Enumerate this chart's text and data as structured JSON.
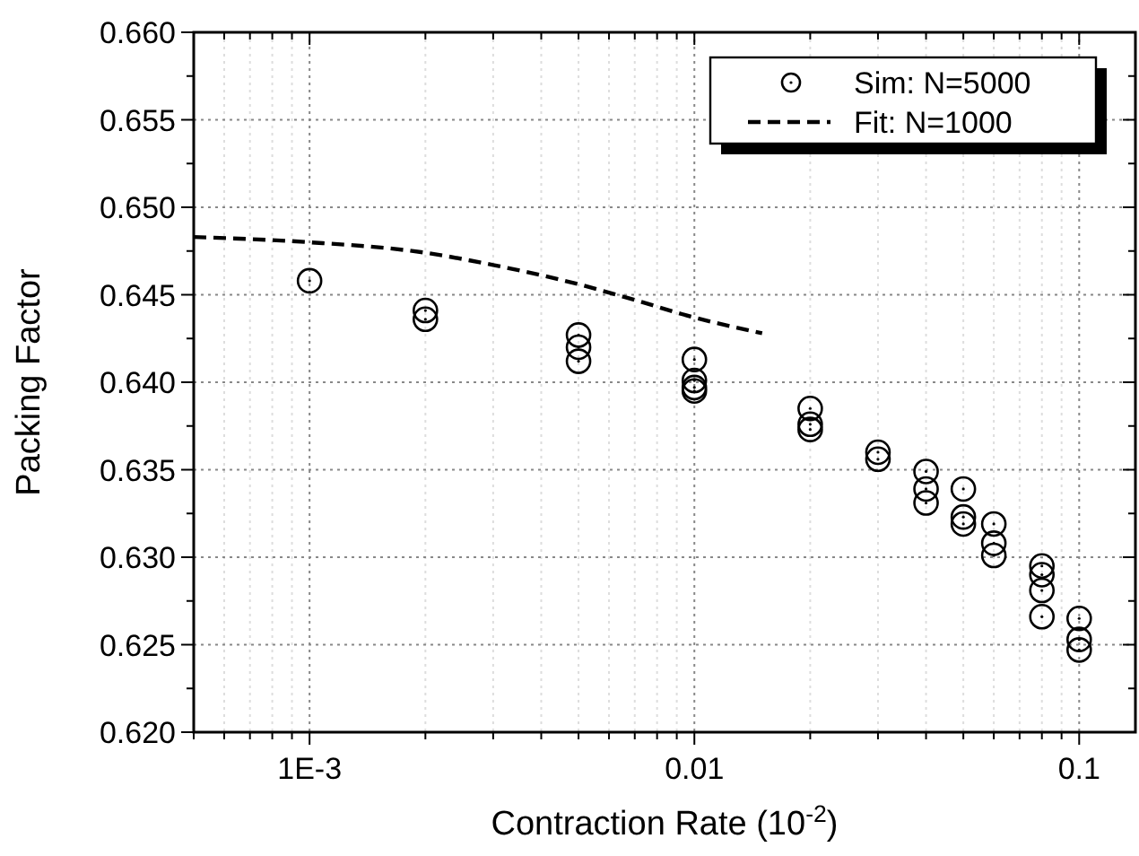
{
  "chart_data": {
    "type": "scatter",
    "xlabel": "Contraction Rate (10$^{-2}$)",
    "ylabel": "Packing Factor",
    "log": "x",
    "grid": true,
    "legend": "top right",
    "xlim": [
      0.0005,
      0.14
    ],
    "ylim": [
      0.62,
      0.66
    ],
    "xticks": [
      {
        "value": 0.0005,
        "label": null
      },
      {
        "value": 0.0006,
        "label": null
      },
      {
        "value": 0.0007,
        "label": null
      },
      {
        "value": 0.0008,
        "label": null
      },
      {
        "value": 0.0009,
        "label": null
      },
      {
        "value": 0.001,
        "label": "1E-3"
      },
      {
        "value": 0.002,
        "label": null
      },
      {
        "value": 0.003,
        "label": null
      },
      {
        "value": 0.004,
        "label": null
      },
      {
        "value": 0.005,
        "label": null
      },
      {
        "value": 0.006,
        "label": null
      },
      {
        "value": 0.007,
        "label": null
      },
      {
        "value": 0.008,
        "label": null
      },
      {
        "value": 0.009,
        "label": null
      },
      0.01,
      {
        "value": 0.02,
        "label": null
      },
      {
        "value": 0.03,
        "label": null
      },
      {
        "value": 0.04,
        "label": null
      },
      {
        "value": 0.05,
        "label": null
      },
      {
        "value": 0.06,
        "label": null
      },
      {
        "value": 0.07,
        "label": null
      },
      {
        "value": 0.08,
        "label": null
      },
      {
        "value": 0.09,
        "label": null
      },
      0.1
    ],
    "yticks": [
      {
        "value": 0.62,
        "label": "0.620"
      },
      {
        "value": 0.6225,
        "label": null
      },
      {
        "value": 0.625,
        "label": "0.625"
      },
      {
        "value": 0.6275,
        "label": null
      },
      {
        "value": 0.63,
        "label": "0.630"
      },
      {
        "value": 0.6325,
        "label": null
      },
      {
        "value": 0.635,
        "label": "0.635"
      },
      {
        "value": 0.6375,
        "label": null
      },
      {
        "value": 0.64,
        "label": "0.640"
      },
      {
        "value": 0.6425,
        "label": null
      },
      {
        "value": 0.645,
        "label": "0.645"
      },
      {
        "value": 0.6475,
        "label": null
      },
      {
        "value": 0.65,
        "label": "0.650"
      },
      {
        "value": 0.6525,
        "label": null
      },
      {
        "value": 0.655,
        "label": "0.655"
      },
      {
        "value": 0.6575,
        "label": null
      },
      {
        "value": 0.66,
        "label": "0.660"
      }
    ],
    "series": [
      {
        "name": "Sim: N=5000",
        "marker": "circle",
        "color": "#000000",
        "x": [
          0.001,
          0.002,
          0.002,
          0.005,
          0.005,
          0.005,
          0.01,
          0.01,
          0.01,
          0.01,
          0.02,
          0.02,
          0.02,
          0.03,
          0.03,
          0.04,
          0.04,
          0.04,
          0.05,
          0.05,
          0.05,
          0.06,
          0.06,
          0.06,
          0.08,
          0.08,
          0.08,
          0.08,
          0.1,
          0.1,
          0.1
        ],
        "values": [
          0.6458,
          0.6441,
          0.6436,
          0.6427,
          0.642,
          0.6412,
          0.6413,
          0.6401,
          0.6397,
          0.6395,
          0.6385,
          0.6376,
          0.6373,
          0.636,
          0.6356,
          0.6349,
          0.6339,
          0.6331,
          0.6339,
          0.6323,
          0.6319,
          0.6319,
          0.6308,
          0.6301,
          0.6295,
          0.629,
          0.6281,
          0.6266,
          0.6265,
          0.6253,
          0.6247
        ]
      },
      {
        "name": "Fit: N=1000",
        "type": "line",
        "marker": "none",
        "line_style": "dashed",
        "color": "#000000",
        "x": [
          0.0005,
          0.001,
          0.002,
          0.003,
          0.005,
          0.007,
          0.01,
          0.015
        ],
        "values": [
          0.6483,
          0.648,
          0.6474,
          0.6467,
          0.6456,
          0.6447,
          0.6437,
          0.6428
        ]
      }
    ]
  }
}
